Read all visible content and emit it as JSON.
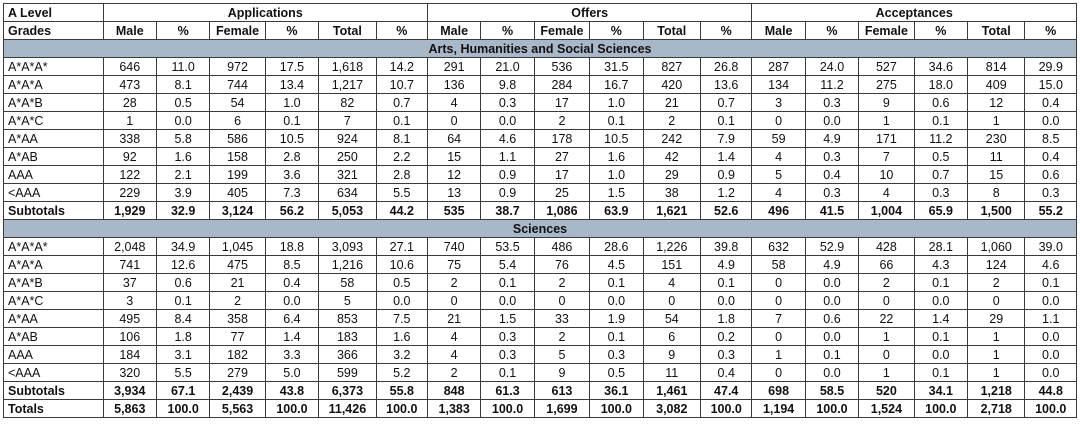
{
  "header": {
    "grade_label_line1": "A Level",
    "grade_label_line2": "Grades",
    "groups": [
      "Applications",
      "Offers",
      "Acceptances"
    ],
    "columns": [
      "Male",
      "%",
      "Female",
      "%",
      "Total",
      "%"
    ]
  },
  "sections": [
    {
      "title": "Arts, Humanities and Social Sciences",
      "rows": [
        {
          "grade": "A*A*A*",
          "cells": [
            "646",
            "11.0",
            "972",
            "17.5",
            "1,618",
            "14.2",
            "291",
            "21.0",
            "536",
            "31.5",
            "827",
            "26.8",
            "287",
            "24.0",
            "527",
            "34.6",
            "814",
            "29.9"
          ]
        },
        {
          "grade": "A*A*A",
          "cells": [
            "473",
            "8.1",
            "744",
            "13.4",
            "1,217",
            "10.7",
            "136",
            "9.8",
            "284",
            "16.7",
            "420",
            "13.6",
            "134",
            "11.2",
            "275",
            "18.0",
            "409",
            "15.0"
          ]
        },
        {
          "grade": "A*A*B",
          "cells": [
            "28",
            "0.5",
            "54",
            "1.0",
            "82",
            "0.7",
            "4",
            "0.3",
            "17",
            "1.0",
            "21",
            "0.7",
            "3",
            "0.3",
            "9",
            "0.6",
            "12",
            "0.4"
          ]
        },
        {
          "grade": "A*A*C",
          "cells": [
            "1",
            "0.0",
            "6",
            "0.1",
            "7",
            "0.1",
            "0",
            "0.0",
            "2",
            "0.1",
            "2",
            "0.1",
            "0",
            "0.0",
            "1",
            "0.1",
            "1",
            "0.0"
          ]
        },
        {
          "grade": "A*AA",
          "cells": [
            "338",
            "5.8",
            "586",
            "10.5",
            "924",
            "8.1",
            "64",
            "4.6",
            "178",
            "10.5",
            "242",
            "7.9",
            "59",
            "4.9",
            "171",
            "11.2",
            "230",
            "8.5"
          ]
        },
        {
          "grade": "A*AB",
          "cells": [
            "92",
            "1.6",
            "158",
            "2.8",
            "250",
            "2.2",
            "15",
            "1.1",
            "27",
            "1.6",
            "42",
            "1.4",
            "4",
            "0.3",
            "7",
            "0.5",
            "11",
            "0.4"
          ]
        },
        {
          "grade": "AAA",
          "cells": [
            "122",
            "2.1",
            "199",
            "3.6",
            "321",
            "2.8",
            "12",
            "0.9",
            "17",
            "1.0",
            "29",
            "0.9",
            "5",
            "0.4",
            "10",
            "0.7",
            "15",
            "0.6"
          ]
        },
        {
          "grade": "<AAA",
          "cells": [
            "229",
            "3.9",
            "405",
            "7.3",
            "634",
            "5.5",
            "13",
            "0.9",
            "25",
            "1.5",
            "38",
            "1.2",
            "4",
            "0.3",
            "4",
            "0.3",
            "8",
            "0.3"
          ]
        }
      ],
      "subtotal": {
        "label": "Subtotals",
        "cells": [
          "1,929",
          "32.9",
          "3,124",
          "56.2",
          "5,053",
          "44.2",
          "535",
          "38.7",
          "1,086",
          "63.9",
          "1,621",
          "52.6",
          "496",
          "41.5",
          "1,004",
          "65.9",
          "1,500",
          "55.2"
        ]
      }
    },
    {
      "title": "Sciences",
      "rows": [
        {
          "grade": "A*A*A*",
          "cells": [
            "2,048",
            "34.9",
            "1,045",
            "18.8",
            "3,093",
            "27.1",
            "740",
            "53.5",
            "486",
            "28.6",
            "1,226",
            "39.8",
            "632",
            "52.9",
            "428",
            "28.1",
            "1,060",
            "39.0"
          ]
        },
        {
          "grade": "A*A*A",
          "cells": [
            "741",
            "12.6",
            "475",
            "8.5",
            "1,216",
            "10.6",
            "75",
            "5.4",
            "76",
            "4.5",
            "151",
            "4.9",
            "58",
            "4.9",
            "66",
            "4.3",
            "124",
            "4.6"
          ]
        },
        {
          "grade": "A*A*B",
          "cells": [
            "37",
            "0.6",
            "21",
            "0.4",
            "58",
            "0.5",
            "2",
            "0.1",
            "2",
            "0.1",
            "4",
            "0.1",
            "0",
            "0.0",
            "2",
            "0.1",
            "2",
            "0.1"
          ]
        },
        {
          "grade": "A*A*C",
          "cells": [
            "3",
            "0.1",
            "2",
            "0.0",
            "5",
            "0.0",
            "0",
            "0.0",
            "0",
            "0.0",
            "0",
            "0.0",
            "0",
            "0.0",
            "0",
            "0.0",
            "0",
            "0.0"
          ]
        },
        {
          "grade": "A*AA",
          "cells": [
            "495",
            "8.4",
            "358",
            "6.4",
            "853",
            "7.5",
            "21",
            "1.5",
            "33",
            "1.9",
            "54",
            "1.8",
            "7",
            "0.6",
            "22",
            "1.4",
            "29",
            "1.1"
          ]
        },
        {
          "grade": "A*AB",
          "cells": [
            "106",
            "1.8",
            "77",
            "1.4",
            "183",
            "1.6",
            "4",
            "0.3",
            "2",
            "0.1",
            "6",
            "0.2",
            "0",
            "0.0",
            "1",
            "0.1",
            "1",
            "0.0"
          ]
        },
        {
          "grade": "AAA",
          "cells": [
            "184",
            "3.1",
            "182",
            "3.3",
            "366",
            "3.2",
            "4",
            "0.3",
            "5",
            "0.3",
            "9",
            "0.3",
            "1",
            "0.1",
            "0",
            "0.0",
            "1",
            "0.0"
          ]
        },
        {
          "grade": "<AAA",
          "cells": [
            "320",
            "5.5",
            "279",
            "5.0",
            "599",
            "5.2",
            "2",
            "0.1",
            "9",
            "0.5",
            "11",
            "0.4",
            "0",
            "0.0",
            "1",
            "0.1",
            "1",
            "0.0"
          ]
        }
      ],
      "subtotal": {
        "label": "Subtotals",
        "cells": [
          "3,934",
          "67.1",
          "2,439",
          "43.8",
          "6,373",
          "55.8",
          "848",
          "61.3",
          "613",
          "36.1",
          "1,461",
          "47.4",
          "698",
          "58.5",
          "520",
          "34.1",
          "1,218",
          "44.8"
        ]
      }
    }
  ],
  "totals": {
    "label": "Totals",
    "cells": [
      "5,863",
      "100.0",
      "5,563",
      "100.0",
      "11,426",
      "100.0",
      "1,383",
      "100.0",
      "1,699",
      "100.0",
      "3,082",
      "100.0",
      "1,194",
      "100.0",
      "1,524",
      "100.0",
      "2,718",
      "100.0"
    ]
  },
  "colors": {
    "section_band": "#a9b8c9",
    "border": "#3a3a3a"
  }
}
